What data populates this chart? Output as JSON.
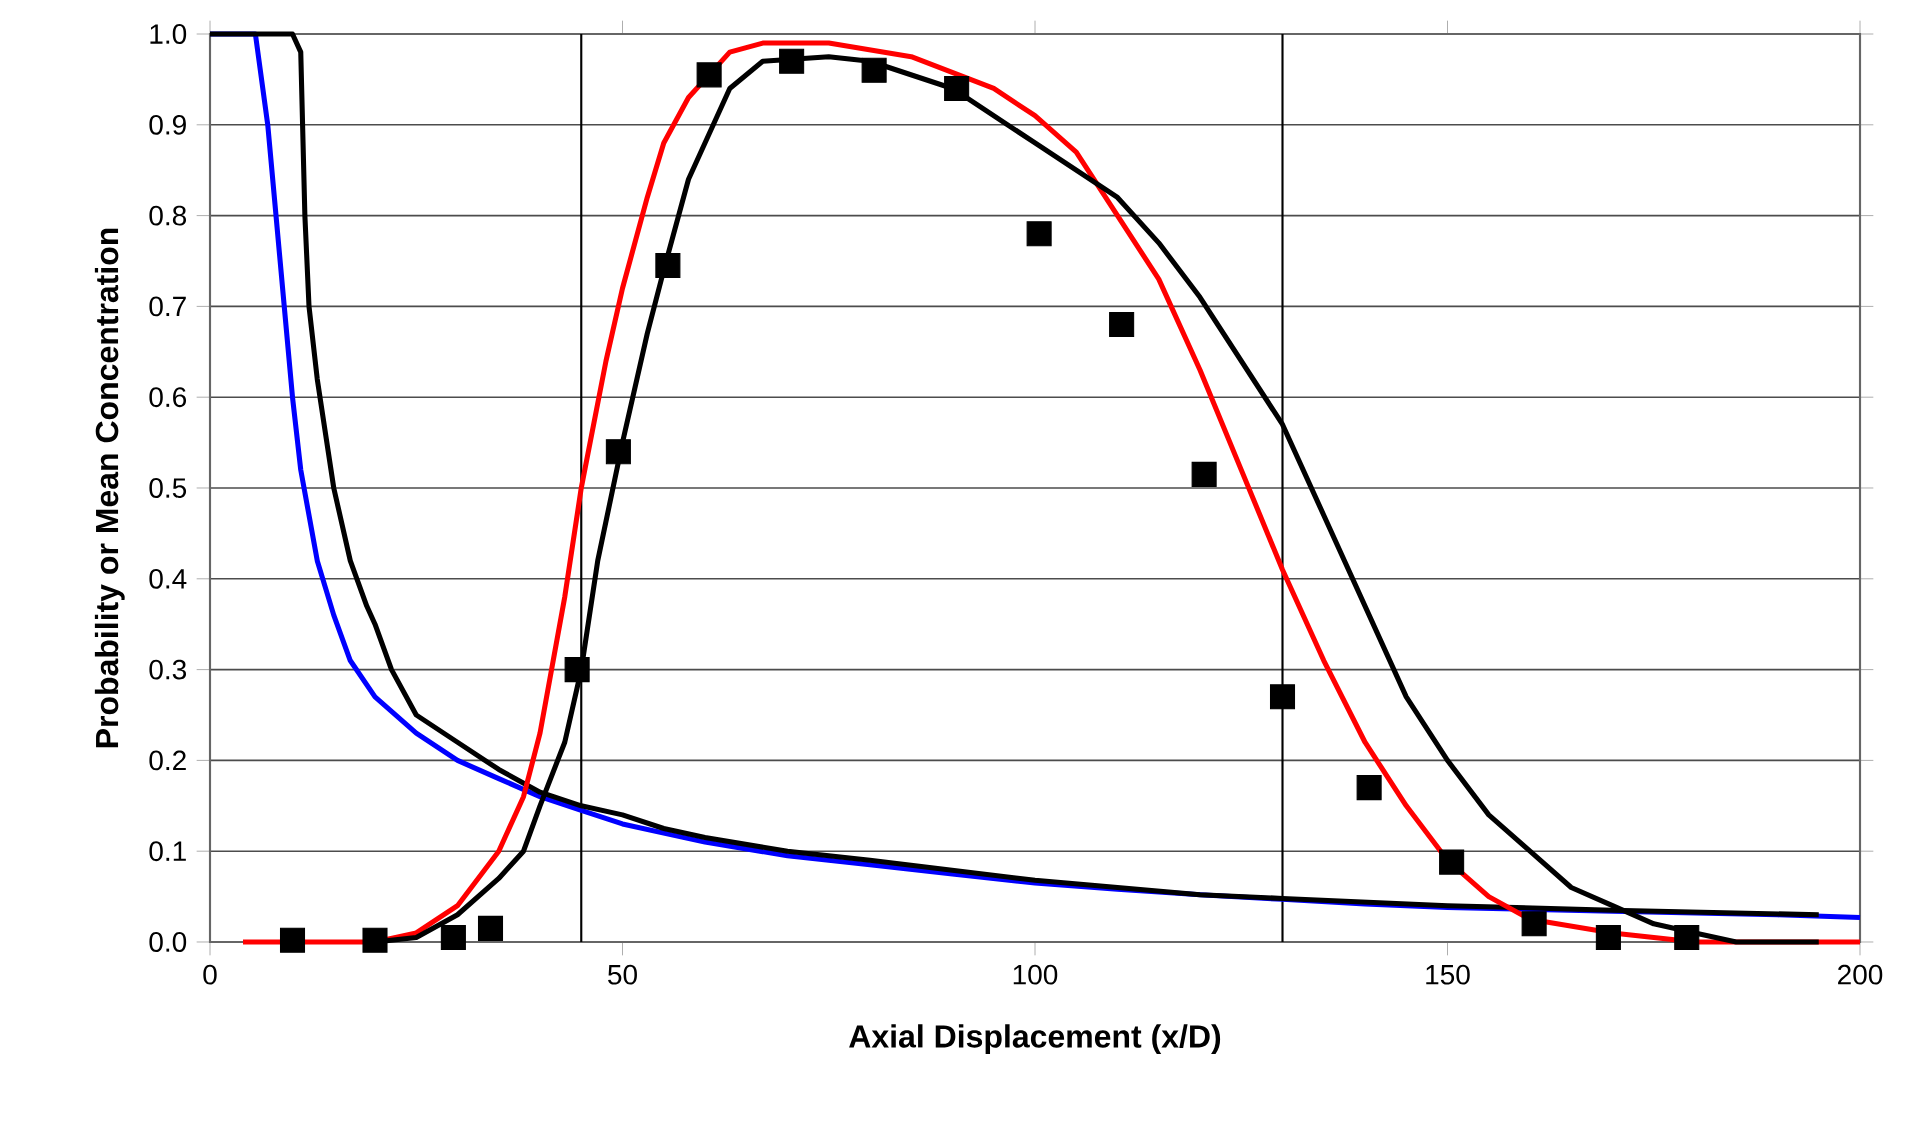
{
  "chart_data": {
    "type": "line",
    "xlabel": "Axial Displacement (x/D)",
    "ylabel": "Probability or Mean Concentration",
    "xlim": [
      0,
      200
    ],
    "ylim": [
      0,
      1
    ],
    "xticks": [
      0,
      50,
      100,
      150,
      200
    ],
    "yticks": [
      {
        "value": 0,
        "label": "0.0"
      },
      0.1,
      0.2,
      0.3,
      0.4,
      0.5,
      0.6,
      0.7,
      0.8,
      0.9,
      {
        "value": 1,
        "label": "1.0"
      }
    ],
    "grid": "y",
    "ref_lines": [
      {
        "axis": "x",
        "value": 45,
        "color": "#000000"
      },
      {
        "axis": "x",
        "value": 130,
        "color": "#000000"
      }
    ],
    "series": [
      {
        "color": "#0000ff",
        "marker": "none",
        "x": [
          0,
          5.5,
          7,
          8,
          9,
          10,
          11,
          13,
          15,
          17,
          20,
          25,
          30,
          35,
          40,
          45,
          50,
          60,
          70,
          80,
          90,
          100,
          110,
          120,
          130,
          140,
          150,
          170,
          190,
          200
        ],
        "values": [
          1,
          1,
          0.9,
          0.8,
          0.7,
          0.6,
          0.52,
          0.42,
          0.36,
          0.31,
          0.27,
          0.23,
          0.2,
          0.18,
          0.16,
          0.145,
          0.13,
          0.11,
          0.095,
          0.085,
          0.075,
          0.065,
          0.058,
          0.052,
          0.047,
          0.042,
          0.038,
          0.034,
          0.03,
          0.027
        ]
      },
      {
        "color": "#000000",
        "marker": "none",
        "x": [
          0,
          10,
          11,
          11.5,
          12,
          13,
          14,
          15,
          17,
          19,
          20,
          22,
          25,
          30,
          35,
          40,
          45,
          50,
          55,
          60,
          70,
          80,
          100,
          120,
          130,
          150,
          170,
          195
        ],
        "values": [
          1,
          1,
          0.98,
          0.8,
          0.7,
          0.62,
          0.56,
          0.5,
          0.42,
          0.37,
          0.35,
          0.3,
          0.25,
          0.22,
          0.19,
          0.165,
          0.15,
          0.14,
          0.125,
          0.115,
          0.1,
          0.09,
          0.068,
          0.052,
          0.048,
          0.04,
          0.035,
          0.03
        ]
      },
      {
        "color": "#ff0000",
        "marker": "none",
        "x": [
          4,
          20,
          25,
          30,
          35,
          38,
          40,
          43,
          45,
          48,
          50,
          53,
          55,
          58,
          60,
          63,
          67,
          75,
          85,
          95,
          100,
          105,
          110,
          115,
          120,
          125,
          130,
          135,
          140,
          145,
          150,
          155,
          160,
          170,
          180,
          200
        ],
        "values": [
          0,
          0,
          0.01,
          0.04,
          0.1,
          0.16,
          0.23,
          0.38,
          0.5,
          0.64,
          0.72,
          0.82,
          0.88,
          0.93,
          0.95,
          0.98,
          0.99,
          0.99,
          0.975,
          0.94,
          0.91,
          0.87,
          0.8,
          0.73,
          0.63,
          0.52,
          0.41,
          0.31,
          0.22,
          0.15,
          0.09,
          0.05,
          0.025,
          0.01,
          0,
          0
        ]
      },
      {
        "color": "#000000",
        "marker": "none",
        "x": [
          20,
          25,
          30,
          35,
          38,
          40,
          43,
          45,
          47,
          50,
          53,
          55,
          58,
          60,
          63,
          67,
          75,
          80,
          90,
          100,
          110,
          115,
          120,
          125,
          130,
          135,
          140,
          145,
          150,
          155,
          160,
          165,
          170,
          175,
          180,
          185,
          195
        ],
        "values": [
          0,
          0.005,
          0.03,
          0.07,
          0.1,
          0.15,
          0.22,
          0.3,
          0.42,
          0.55,
          0.67,
          0.74,
          0.84,
          0.88,
          0.94,
          0.97,
          0.975,
          0.97,
          0.94,
          0.88,
          0.82,
          0.77,
          0.71,
          0.64,
          0.57,
          0.47,
          0.37,
          0.27,
          0.2,
          0.14,
          0.1,
          0.06,
          0.04,
          0.02,
          0.01,
          0,
          0
        ]
      },
      {
        "type": "scatter",
        "color": "#000000",
        "marker": "square",
        "x": [
          10,
          20,
          29.5,
          34,
          44.5,
          49.5,
          55.5,
          60.5,
          70.5,
          80.5,
          90.5,
          100.5,
          110.5,
          120.5,
          130,
          140.5,
          150.5,
          160.5,
          169.5,
          179
        ],
        "values": [
          0.002,
          0.002,
          0.005,
          0.015,
          0.3,
          0.54,
          0.745,
          0.955,
          0.97,
          0.96,
          0.94,
          0.78,
          0.68,
          0.515,
          0.27,
          0.17,
          0.088,
          0.02,
          0.005,
          0.005
        ]
      }
    ]
  }
}
